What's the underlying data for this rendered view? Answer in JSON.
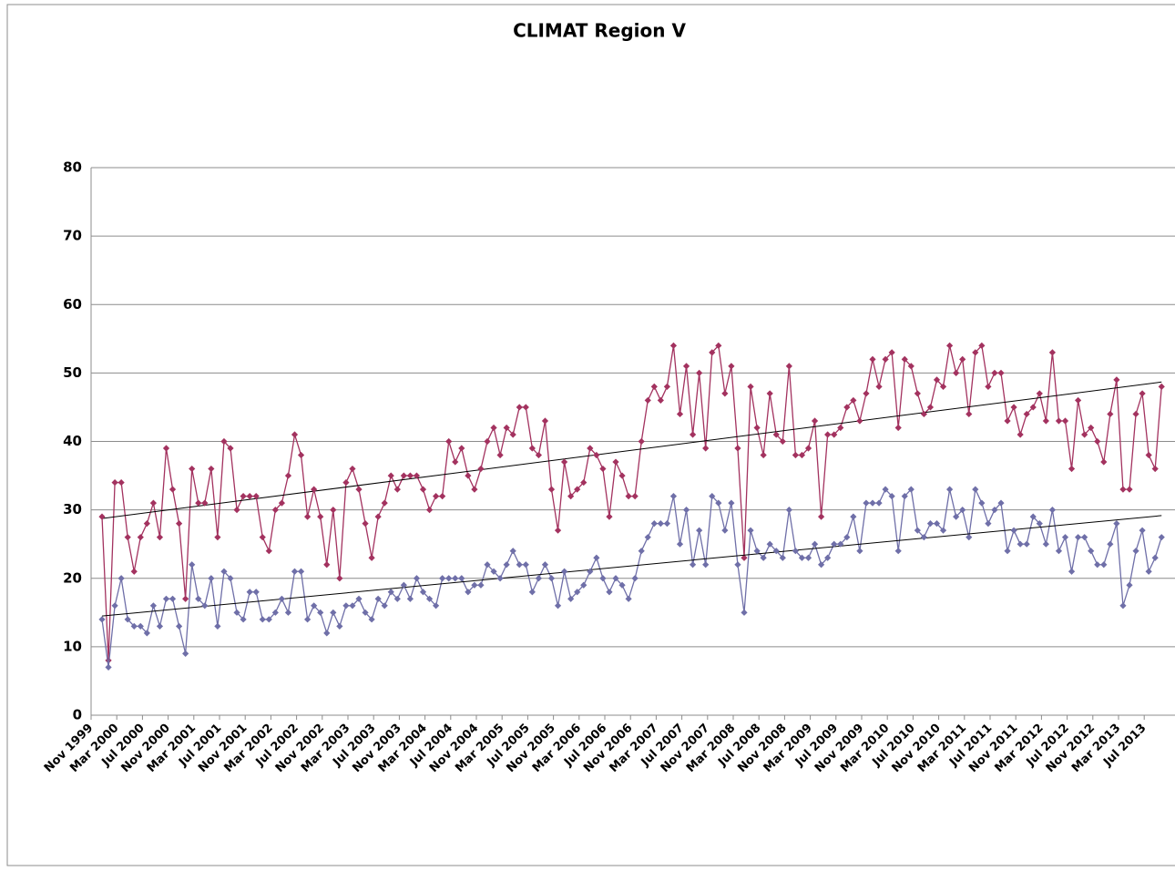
{
  "chart_data": {
    "type": "line",
    "title": "CLIMAT Region V",
    "categories": [
      "Nov 1999",
      null,
      null,
      null,
      "Mar 2000",
      null,
      null,
      null,
      "Jul 2000",
      null,
      null,
      null,
      "Nov 2000",
      null,
      null,
      null,
      "Mar 2001",
      null,
      null,
      null,
      "Jul 2001",
      null,
      null,
      null,
      "Nov 2001",
      null,
      null,
      null,
      "Mar 2002",
      null,
      null,
      null,
      "Jul 2002",
      null,
      null,
      null,
      "Nov 2002",
      null,
      null,
      null,
      "Mar 2003",
      null,
      null,
      null,
      "Jul 2003",
      null,
      null,
      null,
      "Nov 2003",
      null,
      null,
      null,
      "Mar 2004",
      null,
      null,
      null,
      "Jul 2004",
      null,
      null,
      null,
      "Nov 2004",
      null,
      null,
      null,
      "Mar 2005",
      null,
      null,
      null,
      "Jul 2005",
      null,
      null,
      null,
      "Nov 2005",
      null,
      null,
      null,
      "Mar 2006",
      null,
      null,
      null,
      "Jul 2006",
      null,
      null,
      null,
      "Nov 2006",
      null,
      null,
      null,
      "Mar 2007",
      null,
      null,
      null,
      "Jul 2007",
      null,
      null,
      null,
      "Nov 2007",
      null,
      null,
      null,
      "Mar 2008",
      null,
      null,
      null,
      "Jul 2008",
      null,
      null,
      null,
      "Nov 2008",
      null,
      null,
      null,
      "Mar 2009",
      null,
      null,
      null,
      "Jul 2009",
      null,
      null,
      null,
      "Nov 2009",
      null,
      null,
      null,
      "Mar 2010",
      null,
      null,
      null,
      "Jul 2010",
      null,
      null,
      null,
      "Nov 2010",
      null,
      null,
      null,
      "Mar 2011",
      null,
      null,
      null,
      "Jul 2011",
      null,
      null,
      null,
      "Nov 2011",
      null,
      null,
      null,
      "Mar 2012",
      null,
      null,
      null,
      "Jul 2012",
      null,
      null,
      null,
      "Nov 2012",
      null,
      null,
      null,
      "Mar 2013",
      null,
      null,
      null,
      "Jul 2013",
      null
    ],
    "series": [
      {
        "color": "#a3325f",
        "values": [
          29,
          8,
          34,
          34,
          26,
          21,
          26,
          28,
          31,
          26,
          39,
          33,
          28,
          17,
          36,
          31,
          31,
          36,
          26,
          40,
          39,
          30,
          32,
          32,
          32,
          26,
          24,
          30,
          31,
          35,
          41,
          38,
          29,
          33,
          29,
          22,
          30,
          20,
          34,
          36,
          33,
          28,
          23,
          29,
          31,
          35,
          33,
          35,
          35,
          35,
          33,
          30,
          32,
          32,
          40,
          37,
          39,
          35,
          33,
          36,
          40,
          42,
          38,
          42,
          41,
          45,
          45,
          39,
          38,
          43,
          33,
          27,
          37,
          32,
          33,
          34,
          39,
          38,
          36,
          29,
          37,
          35,
          32,
          32,
          40,
          46,
          48,
          46,
          48,
          54,
          44,
          51,
          41,
          50,
          39,
          53,
          54,
          47,
          51,
          39,
          23,
          48,
          42,
          38,
          47,
          41,
          40,
          51,
          38,
          38,
          39,
          43,
          29,
          41,
          41,
          42,
          45,
          46,
          43,
          47,
          52,
          48,
          52,
          53,
          42,
          52,
          51,
          47,
          44,
          45,
          49,
          48,
          54,
          50,
          52,
          44,
          53,
          54,
          48,
          50,
          50,
          43,
          45,
          41,
          44,
          45,
          47,
          43,
          53,
          43,
          43,
          36,
          46,
          41,
          42,
          40,
          37,
          44,
          49,
          33,
          33,
          44,
          47,
          38,
          36,
          48
        ]
      },
      {
        "color": "#6f6fa8",
        "values": [
          14,
          7,
          16,
          20,
          14,
          13,
          13,
          12,
          16,
          13,
          17,
          17,
          13,
          9,
          22,
          17,
          16,
          20,
          13,
          21,
          20,
          15,
          14,
          18,
          18,
          14,
          14,
          15,
          17,
          15,
          21,
          21,
          14,
          16,
          15,
          12,
          15,
          13,
          16,
          16,
          17,
          15,
          14,
          17,
          16,
          18,
          17,
          19,
          17,
          20,
          18,
          17,
          16,
          20,
          20,
          20,
          20,
          18,
          19,
          19,
          22,
          21,
          20,
          22,
          24,
          22,
          22,
          18,
          20,
          22,
          20,
          16,
          21,
          17,
          18,
          19,
          21,
          23,
          20,
          18,
          20,
          19,
          17,
          20,
          24,
          26,
          28,
          28,
          28,
          32,
          25,
          30,
          22,
          27,
          22,
          32,
          31,
          27,
          31,
          22,
          15,
          27,
          24,
          23,
          25,
          24,
          23,
          30,
          24,
          23,
          23,
          25,
          22,
          23,
          25,
          25,
          26,
          29,
          24,
          31,
          31,
          31,
          33,
          32,
          24,
          32,
          33,
          27,
          26,
          28,
          28,
          27,
          33,
          29,
          30,
          26,
          33,
          31,
          28,
          30,
          31,
          24,
          27,
          25,
          25,
          29,
          28,
          25,
          30,
          24,
          26,
          21,
          26,
          26,
          24,
          22,
          22,
          25,
          28,
          16,
          19,
          24,
          27,
          21,
          23,
          26
        ]
      }
    ],
    "ylim": [
      0,
      80
    ],
    "yticks": [
      0,
      10,
      20,
      30,
      40,
      50,
      60,
      70,
      80
    ],
    "grid": true,
    "trendline": true
  }
}
